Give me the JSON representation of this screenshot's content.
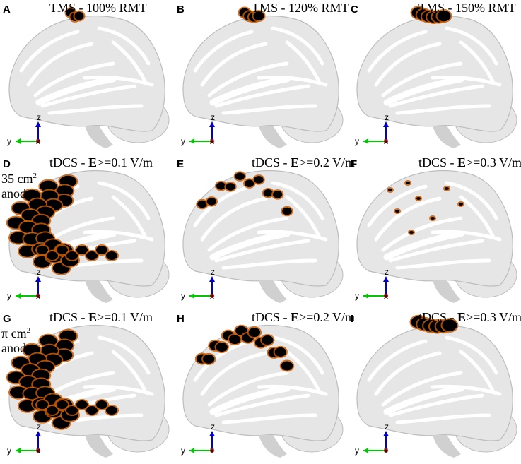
{
  "rows": [
    {
      "row_label_lines": [],
      "panels": [
        {
          "letter": "A",
          "title_pre": "TMS - 100% RMT",
          "title_bold": "",
          "title_post": ""
        },
        {
          "letter": "B",
          "title_pre": "TMS - 120% RMT",
          "title_bold": "",
          "title_post": ""
        },
        {
          "letter": "C",
          "title_pre": "TMS - 150% RMT",
          "title_bold": "",
          "title_post": ""
        }
      ]
    },
    {
      "row_label_lines": [
        "35 cm",
        "anode"
      ],
      "row_label_sup": "2",
      "panels": [
        {
          "letter": "D",
          "title_pre": "tDCS - ",
          "title_bold": "E",
          "title_post": ">=0.1 V/m"
        },
        {
          "letter": "E",
          "title_pre": "tDCS - ",
          "title_bold": "E",
          "title_post": ">=0.2 V/m"
        },
        {
          "letter": "F",
          "title_pre": "tDCS - ",
          "title_bold": "E",
          "title_post": ">=0.3 V/m"
        }
      ]
    },
    {
      "row_label_lines": [
        "π cm",
        "anode"
      ],
      "row_label_sup": "2",
      "panels": [
        {
          "letter": "G",
          "title_pre": "tDCS - ",
          "title_bold": "E",
          "title_post": ">=0.1 V/m"
        },
        {
          "letter": "H",
          "title_pre": "tDCS - ",
          "title_bold": "E",
          "title_post": ">=0.2 V/m"
        },
        {
          "letter": "I",
          "title_pre": "tDCS - ",
          "title_bold": "E",
          "title_post": ">=0.3 V/m"
        }
      ]
    }
  ],
  "axis_labels": {
    "y": "y",
    "z": "z",
    "x": "x"
  },
  "colors": {
    "cortex": "#e6e6e6",
    "cortex_shadow": "#bdbdbd",
    "activation": "#000000",
    "activation_edge": "#c85a00",
    "axis_y": "#00c800",
    "axis_z": "#0000d0",
    "axis_x": "#d00000"
  }
}
